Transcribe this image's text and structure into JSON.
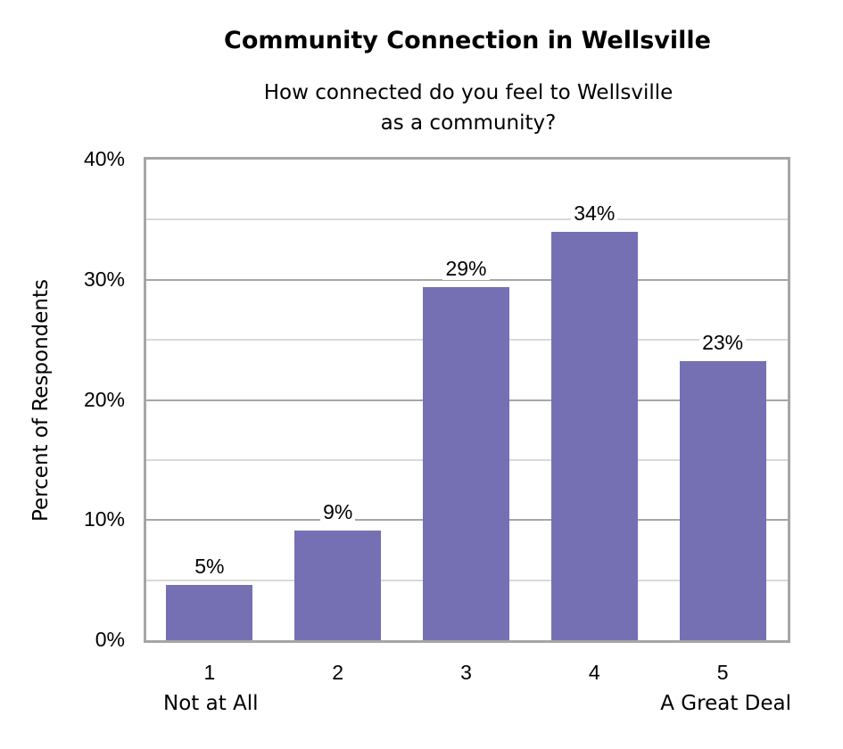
{
  "chart_data": {
    "type": "bar",
    "title": "Community Connection in Wellsville",
    "subtitle": [
      "How connected do you feel to Wellsville",
      "as a community?"
    ],
    "categories": [
      "1",
      "2",
      "3",
      "4",
      "5"
    ],
    "category_sublabels": [
      "Not at All",
      "",
      "",
      "",
      "A Great Deal"
    ],
    "values": [
      4.6,
      9.1,
      29.4,
      34.0,
      23.2
    ],
    "data_labels": [
      "5%",
      "9%",
      "29%",
      "34%",
      "23%"
    ],
    "xlabel": "",
    "ylabel": "Percent of Respondents",
    "ylim": [
      0,
      40
    ],
    "yticks": [
      "0%",
      "10%",
      "20%",
      "30%",
      "40%"
    ],
    "grid": {
      "major_step": 10,
      "minor_step": 5
    },
    "legend": null,
    "colors": {
      "bar": "#7570b3",
      "major_grid": "#a6a6a6",
      "minor_grid": "#d9d9d9",
      "frame": "#a6a6a6"
    }
  }
}
